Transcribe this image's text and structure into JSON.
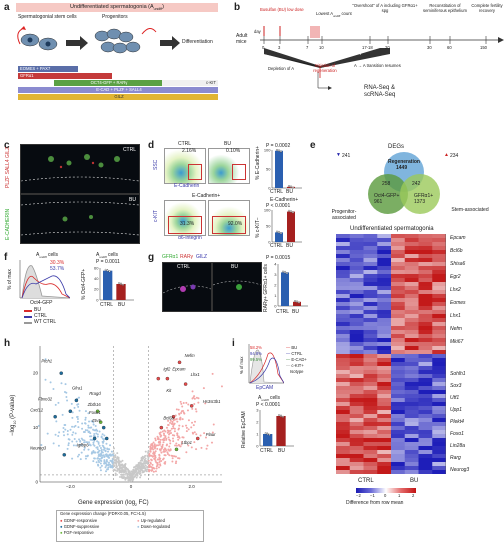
{
  "panel_a": {
    "label": "a",
    "title": "Undifferentiated spermatogonia (A",
    "title_sub": "undiff",
    "title_end": ")",
    "stem_label": "Spermatogonial stem cells",
    "progenitors_label": "Progenitors",
    "diff_label": "Differentiation",
    "markers": [
      "EOMES + PAX7",
      "GFRα1",
      "OCT4-GFP + RARγ",
      "c-KIT",
      "E-CAD + PLZF + SALL4",
      "GILZ"
    ]
  },
  "panel_b": {
    "label": "b",
    "busulfan": "Busulfan (BU) low dose",
    "lowest": "Lowest A",
    "lowest_sub": "undiff",
    "lowest_end": " count",
    "overshoot": "\"Overshoot\" of A",
    "overshoot_end": " including GFRα1+ spg",
    "reconstitution": "Reconstitution of seminiferous epithelium",
    "fertility": "Complete fertility recovery",
    "adult_mice": "Adult mice",
    "day": "day",
    "days": [
      "0",
      "3",
      "7",
      "10",
      "17-18",
      "20",
      "30",
      "60",
      "150"
    ],
    "depletion": "depletion",
    "recovery": "A",
    "recovery_end": " recovery",
    "depletion_of": "Depletion of A",
    "initiation": "Initiation of regeneration",
    "transition": "A  → A  transition resumes",
    "rnaseq": "RNA-Seq &",
    "scrnaseq": "scRNA-Seq"
  },
  "panel_c": {
    "label": "c",
    "ctrl": "CTRL",
    "bu": "BU",
    "axis1": "PLZF SALL4 GILZ",
    "axis2": "E-CADHERIN"
  },
  "panel_d": {
    "label": "d",
    "ctrl": "CTRL",
    "bu": "BU",
    "ssc": "SSC",
    "ecad": "E-Cadherin",
    "ecad_pos": "E-Cadherin+",
    "ckit": "c-KIT",
    "a6": "α6-integrin",
    "pct1_ctrl": "2.16%",
    "pct1_bu": "0.10%",
    "pct2_ctrl": "31.3%",
    "pct2_bu": "92.0%",
    "p1": "P = 0.0002",
    "p2": "P < 0.0001",
    "y1": "% E-Cadherin+",
    "y2": "% c-KIT−",
    "bar1_title": "",
    "bar2_title": "E-Cadherin+"
  },
  "panel_e": {
    "label": "e",
    "degs": "DEGs",
    "regeneration": "Regeneration",
    "reg_n": "1449",
    "prog": "Progenitor-associated",
    "stem": "Stem-associated",
    "oct4_n": "961",
    "gfr_n": "1373",
    "ov1": "258",
    "ov2": "242",
    "ov3": "",
    "gfr_lbl": "Oct4-GFP+",
    "gfr2_lbl": "GFRα1+",
    "up": "234",
    "down": "241",
    "heatmap_title": "Undifferentiated spermatogonia",
    "genes_top": [
      "Epcam",
      "Bcl6b",
      "Shisa6",
      "Egr2",
      "Lhx2",
      "Eomes",
      "Lhx1",
      "Nefm",
      "Mki67"
    ],
    "genes_bot": [
      "Sohlh1",
      "Sox3",
      "Utf1",
      "Upp1",
      "Plekt4",
      "Foxo1",
      "Lin28a",
      "Rarg",
      "Neurog3"
    ],
    "ctrl": "CTRL",
    "bu": "BU",
    "scale_ticks": [
      "−2",
      "−1",
      "0",
      "1",
      "2"
    ],
    "scale_title": "Difference from row mean"
  },
  "panel_f": {
    "label": "f",
    "title": "A",
    "title_end": " cells",
    "pct_bu": "30.3%",
    "pct_ctrl": "53.7%",
    "xlabel": "Oct4-GFP",
    "ylabel": "% of max",
    "bar_ylabel": "% Oct4-GFP+",
    "p": "P = 0.0011",
    "legend": [
      "BU",
      "CTRL",
      "WT CTRL"
    ],
    "ctrl": "CTRL",
    "bu": "BU",
    "colors": {
      "bu": "#d92b2b",
      "ctrl": "#3a3aa8",
      "wt": "#999999"
    }
  },
  "panel_g": {
    "label": "g",
    "stain": [
      "GFRα1",
      "RARγ",
      "GILZ"
    ],
    "ctrl": "CTRL",
    "bu": "BU",
    "p": "P = 0.0015",
    "ylabel": "RARγ+ GFRα1+ cells",
    "xctrl": "CTRL",
    "xbu": "BU"
  },
  "panel_h": {
    "label": "h",
    "ylabel": "−log",
    "ylabel_end": " (P-value)",
    "xlabel": "Gene expression (log",
    "xlabel_end": " FC)",
    "xticks": [
      "−2.0",
      "0",
      "2.0"
    ],
    "yticks": [
      "0",
      "10",
      "20"
    ],
    "genes_left": [
      "Ptch1",
      "Gfra1",
      "Fbxo32",
      "Cxcl12",
      "Neurog3",
      "Igfbp6",
      "Rragd",
      "Zbtb16",
      "Foxo1",
      "Etv5"
    ],
    "genes_right": [
      "Nefm",
      "Lhx1",
      "Epcam",
      "Igf2",
      "Kit",
      "Bcl6b",
      "Hs3st3b1",
      "Plaur",
      "Ltbp1"
    ],
    "legend_title": "Gene expression change (FDR<0.05, FC>1.5)",
    "legend": [
      "GDNF-responsive",
      "GDNF-suppressive",
      "FGF-responsive",
      "Up-regulated",
      "Down-regulated"
    ]
  },
  "panel_i": {
    "label": "i",
    "ylabel": "% of max",
    "xlabel": "EpCAM",
    "pct_bu": "58.2%",
    "pct_ctrl": "94.8%",
    "pct_iso": "99.5%",
    "legend": [
      "BU",
      "CTRL",
      "E-CAD+",
      "c-KIT+",
      "Isotype"
    ],
    "bar_title": "A",
    "bar_title_end": " cells",
    "p": "P < 0.0001",
    "bar_ylabel": "Relative EpCAM",
    "ctrl": "CTRL",
    "bu": "BU"
  },
  "bar_charts": [
    {
      "id": "d1",
      "values": [
        98,
        3
      ],
      "ylim": [
        0,
        100
      ],
      "yticks": [
        "0",
        "50",
        "100"
      ]
    },
    {
      "id": "d2",
      "values": [
        30,
        95
      ],
      "ylim": [
        0,
        100
      ],
      "yticks": [
        "0",
        "50",
        "100"
      ]
    },
    {
      "id": "f",
      "values": [
        55,
        30
      ],
      "ylim": [
        0,
        60
      ],
      "yticks": [
        "0",
        "20",
        "40",
        "60"
      ]
    },
    {
      "id": "g",
      "values": [
        3.2,
        0.4
      ],
      "ylim": [
        0,
        4
      ],
      "yticks": [
        "0",
        "1",
        "2",
        "3",
        "4"
      ]
    },
    {
      "id": "i",
      "values": [
        1,
        2.5
      ],
      "ylim": [
        0,
        3
      ],
      "yticks": [
        "0",
        "1",
        "2",
        "3"
      ]
    }
  ]
}
